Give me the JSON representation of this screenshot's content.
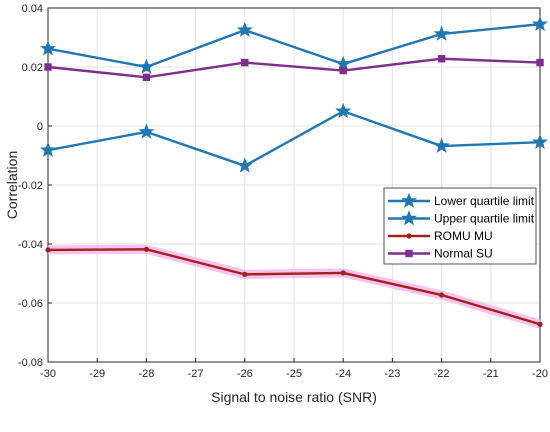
{
  "chart_data": {
    "type": "line",
    "xlabel": "Signal to noise ratio (SNR)",
    "ylabel": "Correlation",
    "xlim": [
      -30,
      -20
    ],
    "ylim": [
      -0.08,
      0.04
    ],
    "xticks": [
      -30,
      -29,
      -28,
      -27,
      -26,
      -25,
      -24,
      -23,
      -22,
      -21,
      -20
    ],
    "yticks": [
      -0.08,
      -0.06,
      -0.04,
      -0.02,
      0,
      0.02,
      0.04
    ],
    "xtick_labels": [
      "-30",
      "-29",
      "-28",
      "-27",
      "-26",
      "-25",
      "-24",
      "-23",
      "-22",
      "-21",
      "-20"
    ],
    "ytick_labels": [
      "-0.08",
      "-0.06",
      "-0.04",
      "-0.02",
      "0",
      "0.02",
      "0.04"
    ],
    "grid": true,
    "legend_position": "center-right",
    "x": [
      -30,
      -28,
      -26,
      -24,
      -22,
      -20
    ],
    "series": [
      {
        "name": "Lower quartile limit",
        "values": [
          -0.0082,
          -0.002,
          -0.0135,
          0.005,
          -0.0068,
          -0.0055
        ],
        "color": "#1f77b4",
        "marker": "star"
      },
      {
        "name": "Upper quartile limit",
        "values": [
          0.0262,
          0.02,
          0.0325,
          0.021,
          0.0312,
          0.0345
        ],
        "color": "#1f77b4",
        "marker": "star"
      },
      {
        "name": "ROMU MU",
        "values": [
          -0.042,
          -0.0418,
          -0.0503,
          -0.0498,
          -0.0573,
          -0.0672
        ],
        "color": "#a2221b",
        "marker": "dot",
        "band_color": "#f5b8ef"
      },
      {
        "name": "Normal SU",
        "values": [
          0.02,
          0.0165,
          0.0215,
          0.0188,
          0.0228,
          0.0215
        ],
        "color": "#7e2f8e",
        "marker": "square"
      }
    ]
  }
}
